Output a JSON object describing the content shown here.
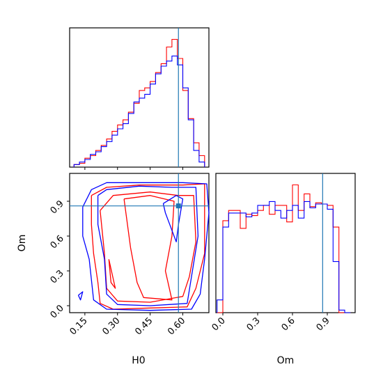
{
  "chart_data": {
    "type": "corner",
    "colors": {
      "series_a": "#ff0000",
      "series_b": "#0000ff",
      "truth": "#1f77b4"
    },
    "parameters": [
      {
        "name": "H0",
        "range": [
          0.08,
          0.72
        ],
        "ticks": [
          "0.15",
          "0.30",
          "0.45",
          "0.60"
        ],
        "tick_values": [
          0.15,
          0.3,
          0.45,
          0.6
        ],
        "truth": 0.58
      },
      {
        "name": "Om",
        "range": [
          -0.06,
          1.14
        ],
        "ticks": [
          "0.0",
          "0.3",
          "0.6",
          "0.9"
        ],
        "tick_values": [
          0.0,
          0.3,
          0.6,
          0.9
        ],
        "truth": 0.86
      }
    ],
    "histograms": [
      {
        "param": "H0",
        "bin_edges": [
          0.1,
          0.125,
          0.15,
          0.175,
          0.2,
          0.225,
          0.25,
          0.275,
          0.3,
          0.325,
          0.35,
          0.375,
          0.4,
          0.425,
          0.45,
          0.475,
          0.5,
          0.525,
          0.55,
          0.575,
          0.6,
          0.625,
          0.65,
          0.675,
          0.7
        ],
        "series": [
          {
            "color": "red",
            "counts": [
              2,
              3,
              7,
              9,
              13,
              17,
              22,
              28,
              33,
              37,
              43,
              50,
              60,
              62,
              67,
              74,
              81,
              94,
              100,
              85,
              60,
              38,
              19,
              9
            ]
          },
          {
            "color": "blue",
            "counts": [
              2,
              4,
              6,
              10,
              12,
              16,
              20,
              25,
              30,
              34,
              42,
              51,
              54,
              57,
              65,
              73,
              79,
              83,
              87,
              80,
              62,
              37,
              13,
              4
            ]
          }
        ]
      },
      {
        "param": "Om",
        "bin_edges": [
          -0.05,
          0.0,
          0.05,
          0.1,
          0.15,
          0.2,
          0.25,
          0.3,
          0.35,
          0.4,
          0.45,
          0.5,
          0.55,
          0.6,
          0.65,
          0.7,
          0.75,
          0.8,
          0.85,
          0.9,
          0.95,
          1.0,
          1.05,
          1.1
        ],
        "series": [
          {
            "color": "red",
            "counts": [
              0,
              72,
              80,
              80,
              66,
              77,
              76,
              80,
              84,
              77,
              84,
              84,
              71,
              100,
              80,
              93,
              83,
              86,
              85,
              84,
              67,
              0,
              0
            ]
          },
          {
            "color": "blue",
            "counts": [
              10,
              67,
              78,
              78,
              78,
              75,
              78,
              84,
              84,
              87,
              80,
              74,
              80,
              84,
              74,
              87,
              82,
              85,
              85,
              81,
              40,
              2,
              0
            ]
          }
        ]
      }
    ],
    "contours_2d": {
      "x_param": "H0",
      "y_param": "Om",
      "series": [
        {
          "color": "red",
          "paths": [
            [
              [
                0.18,
                0.95
              ],
              [
                0.25,
                1.02
              ],
              [
                0.4,
                1.04
              ],
              [
                0.6,
                1.04
              ],
              [
                0.7,
                1.05
              ],
              [
                0.7,
                0.45
              ],
              [
                0.66,
                0.15
              ],
              [
                0.62,
                -0.01
              ],
              [
                0.45,
                -0.02
              ],
              [
                0.28,
                -0.03
              ],
              [
                0.22,
                0.02
              ],
              [
                0.21,
                0.2
              ],
              [
                0.19,
                0.45
              ],
              [
                0.18,
                0.7
              ],
              [
                0.18,
                0.95
              ]
            ],
            [
              [
                0.22,
                0.82
              ],
              [
                0.28,
                0.95
              ],
              [
                0.45,
                0.98
              ],
              [
                0.58,
                0.95
              ],
              [
                0.65,
                0.95
              ],
              [
                0.66,
                0.55
              ],
              [
                0.63,
                0.25
              ],
              [
                0.6,
                0.08
              ],
              [
                0.45,
                0.03
              ],
              [
                0.3,
                0.04
              ],
              [
                0.25,
                0.15
              ],
              [
                0.24,
                0.45
              ],
              [
                0.22,
                0.82
              ]
            ],
            [
              [
                0.33,
                0.92
              ],
              [
                0.45,
                0.95
              ],
              [
                0.56,
                0.9
              ],
              [
                0.55,
                0.6
              ],
              [
                0.52,
                0.3
              ],
              [
                0.55,
                0.05
              ],
              [
                0.42,
                0.07
              ],
              [
                0.39,
                0.2
              ],
              [
                0.36,
                0.5
              ],
              [
                0.33,
                0.92
              ]
            ],
            [
              [
                0.26,
                0.4
              ],
              [
                0.27,
                0.2
              ],
              [
                0.29,
                0.15
              ],
              [
                0.26,
                0.4
              ]
            ]
          ]
        },
        {
          "color": "blue",
          "paths": [
            [
              [
                0.14,
                0.85
              ],
              [
                0.18,
                1.0
              ],
              [
                0.25,
                1.06
              ],
              [
                0.4,
                1.06
              ],
              [
                0.6,
                1.06
              ],
              [
                0.71,
                1.05
              ],
              [
                0.72,
                0.8
              ],
              [
                0.7,
                0.4
              ],
              [
                0.68,
                0.1
              ],
              [
                0.64,
                -0.03
              ],
              [
                0.45,
                -0.04
              ],
              [
                0.25,
                -0.03
              ],
              [
                0.19,
                0.05
              ],
              [
                0.17,
                0.4
              ],
              [
                0.14,
                0.6
              ],
              [
                0.14,
                0.85
              ]
            ],
            [
              [
                0.21,
                0.95
              ],
              [
                0.25,
                1.0
              ],
              [
                0.4,
                1.03
              ],
              [
                0.55,
                1.02
              ],
              [
                0.66,
                1.02
              ],
              [
                0.67,
                0.6
              ],
              [
                0.64,
                0.25
              ],
              [
                0.62,
                0.02
              ],
              [
                0.45,
                0.0
              ],
              [
                0.3,
                0.01
              ],
              [
                0.25,
                0.1
              ],
              [
                0.24,
                0.4
              ],
              [
                0.21,
                0.7
              ],
              [
                0.21,
                0.95
              ]
            ],
            [
              [
                0.51,
                0.88
              ],
              [
                0.57,
                0.95
              ],
              [
                0.6,
                0.92
              ],
              [
                0.58,
                0.7
              ],
              [
                0.57,
                0.55
              ],
              [
                0.52,
                0.8
              ],
              [
                0.51,
                0.88
              ]
            ],
            [
              [
                0.12,
                0.09
              ],
              [
                0.14,
                0.12
              ],
              [
                0.13,
                0.05
              ],
              [
                0.12,
                0.09
              ]
            ]
          ]
        }
      ],
      "truth_point": [
        0.58,
        0.86
      ]
    }
  }
}
